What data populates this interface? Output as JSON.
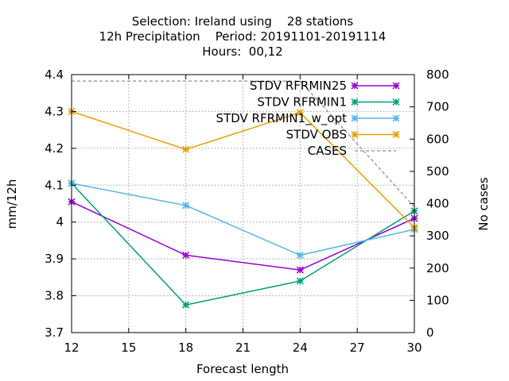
{
  "chart_data": {
    "type": "line",
    "title_lines": [
      "Selection: Ireland using    28 stations",
      "12h Precipitation    Period: 20191101-20191114",
      "Hours:  00,12"
    ],
    "xlabel": "Forecast length",
    "ylabel": "mm/12h",
    "y2label": "No cases",
    "xlim": [
      12,
      30
    ],
    "ylim": [
      3.7,
      4.4
    ],
    "y2lim": [
      0,
      800
    ],
    "xticks": [
      "12",
      "15",
      "18",
      "21",
      "24",
      "27",
      "30"
    ],
    "yticks": [
      "3.7",
      "3.8",
      "3.9",
      "4",
      "4.1",
      "4.2",
      "4.3",
      "4.4"
    ],
    "y2ticks": [
      "0",
      "100",
      "200",
      "300",
      "400",
      "500",
      "600",
      "700",
      "800"
    ],
    "grid": true,
    "legend_position": "top-right",
    "x": [
      12,
      18,
      24,
      30
    ],
    "series": [
      {
        "name": "STDV RFRMIN25",
        "color": "#9400d3",
        "axis": "y",
        "values": [
          4.055,
          3.91,
          3.87,
          4.01
        ]
      },
      {
        "name": "STDV RFRMIN1",
        "color": "#009e73",
        "axis": "y",
        "values": [
          4.105,
          3.775,
          3.84,
          4.03
        ]
      },
      {
        "name": "STDV RFRMIN1_w_opt",
        "color": "#56b4e9",
        "axis": "y",
        "values": [
          4.105,
          4.045,
          3.91,
          3.98
        ]
      },
      {
        "name": "STDV OBS",
        "color": "#e69f00",
        "axis": "y",
        "values": [
          4.3,
          4.197,
          4.297,
          3.985
        ]
      },
      {
        "name": "CASES",
        "color": "#a0a0a0",
        "axis": "y2",
        "dashed": true,
        "values": [
          780,
          780,
          780,
          390
        ]
      }
    ]
  }
}
